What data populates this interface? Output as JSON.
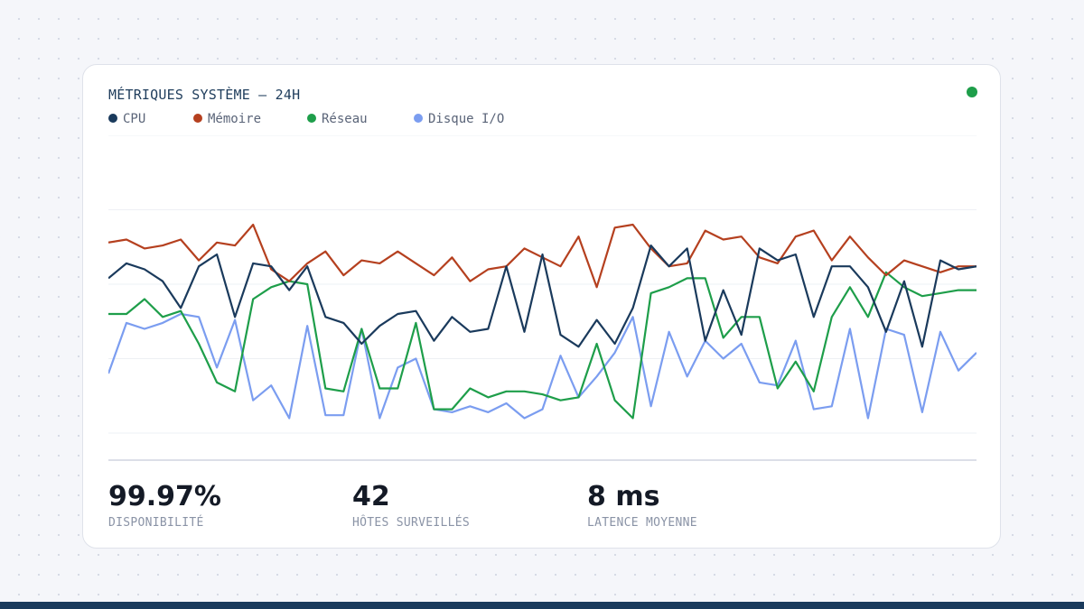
{
  "card": {
    "title": "MÉTRIQUES SYSTÈME — 24H",
    "status_color": "#1e9e4a"
  },
  "chart_data": {
    "type": "line",
    "title": "MÉTRIQUES SYSTÈME — 24H",
    "xlabel": "",
    "ylabel": "",
    "ylim": [
      0,
      100
    ],
    "grid": true,
    "legend_position": "top-left",
    "x": [
      1,
      2,
      3,
      4,
      5,
      6,
      7,
      8,
      9,
      10,
      11,
      12,
      13,
      14,
      15,
      16,
      17,
      18,
      19,
      20,
      21,
      22,
      23,
      24,
      25,
      26,
      27,
      28,
      29,
      30,
      31,
      32,
      33,
      34,
      35,
      36,
      37,
      38,
      39,
      40,
      41,
      42,
      43,
      44,
      45,
      46,
      47,
      48,
      49
    ],
    "series": [
      {
        "name": "CPU",
        "color": "#1a3a5c",
        "values": [
          52,
          57,
          55,
          51,
          42,
          56,
          60,
          39,
          57,
          56,
          48,
          56,
          39,
          37,
          30,
          36,
          40,
          41,
          31,
          39,
          34,
          35,
          56,
          34,
          60,
          33,
          29,
          38,
          30,
          42,
          63,
          56,
          62,
          31,
          48,
          33,
          62,
          58,
          60,
          39,
          56,
          56,
          49,
          34,
          51,
          29,
          58,
          55,
          56
        ]
      },
      {
        "name": "Mémoire",
        "color": "#b5401f",
        "values": [
          64,
          65,
          62,
          63,
          65,
          58,
          64,
          63,
          70,
          55,
          51,
          57,
          61,
          53,
          58,
          57,
          61,
          57,
          53,
          59,
          51,
          55,
          56,
          62,
          59,
          56,
          66,
          49,
          69,
          70,
          62,
          56,
          57,
          68,
          65,
          66,
          59,
          57,
          66,
          68,
          58,
          66,
          59,
          53,
          58,
          56,
          54,
          56,
          56
        ]
      },
      {
        "name": "Réseau",
        "color": "#1e9e4a",
        "values": [
          40,
          40,
          45,
          39,
          41,
          30,
          17,
          14,
          45,
          49,
          51,
          50,
          15,
          14,
          35,
          15,
          15,
          37,
          8,
          8,
          15,
          12,
          14,
          14,
          13,
          11,
          12,
          30,
          11,
          5,
          47,
          49,
          52,
          52,
          32,
          39,
          39,
          15,
          24,
          14,
          39,
          49,
          39,
          54,
          49,
          46,
          47,
          48,
          48
        ]
      },
      {
        "name": "Disque I/O",
        "color": "#7b9df0",
        "values": [
          20,
          37,
          35,
          37,
          40,
          39,
          22,
          38,
          11,
          16,
          5,
          36,
          6,
          6,
          35,
          5,
          22,
          25,
          8,
          7,
          9,
          7,
          10,
          5,
          8,
          26,
          12,
          19,
          27,
          39,
          9,
          34,
          19,
          31,
          25,
          30,
          17,
          16,
          31,
          8,
          9,
          35,
          5,
          35,
          33,
          7,
          34,
          21,
          27
        ]
      }
    ]
  },
  "stats": [
    {
      "value": "99.97%",
      "label": "DISPONIBILITÉ"
    },
    {
      "value": "42",
      "label": "HÔTES SURVEILLÉS"
    },
    {
      "value": "8 ms",
      "label": "LATENCE MOYENNE"
    }
  ],
  "colors": {
    "grid": "#eef0f4",
    "baseline": "#dcdfe8",
    "bottom_bar": "#1a3a5c"
  }
}
